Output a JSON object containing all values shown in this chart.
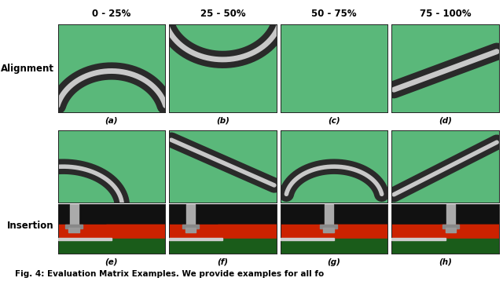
{
  "col_headers": [
    "0 - 25%",
    "25 - 50%",
    "50 - 75%",
    "75 - 100%"
  ],
  "row_labels": [
    "Alignment",
    "Insertion"
  ],
  "sub_labels_row1": [
    "(a)",
    "(b)",
    "(c)",
    "(d)"
  ],
  "sub_labels_row2": [
    "(e)",
    "(f)",
    "(g)",
    "(h)"
  ],
  "caption": "Fig. 4: Evaluation Matrix Examples. We provide examples for all fo",
  "bg_color": "#ffffff",
  "header_fontsize": 8.5,
  "label_fontsize": 7.5,
  "row_label_fontsize": 8.5,
  "caption_fontsize": 7.5,
  "green_bg": "#5ab87a",
  "gasket_dark": "#2a2a2a",
  "gasket_light": "#c8c8c8",
  "insertion_green": "#2d7a2d",
  "insertion_red": "#cc2200",
  "insertion_dark": "#111111"
}
